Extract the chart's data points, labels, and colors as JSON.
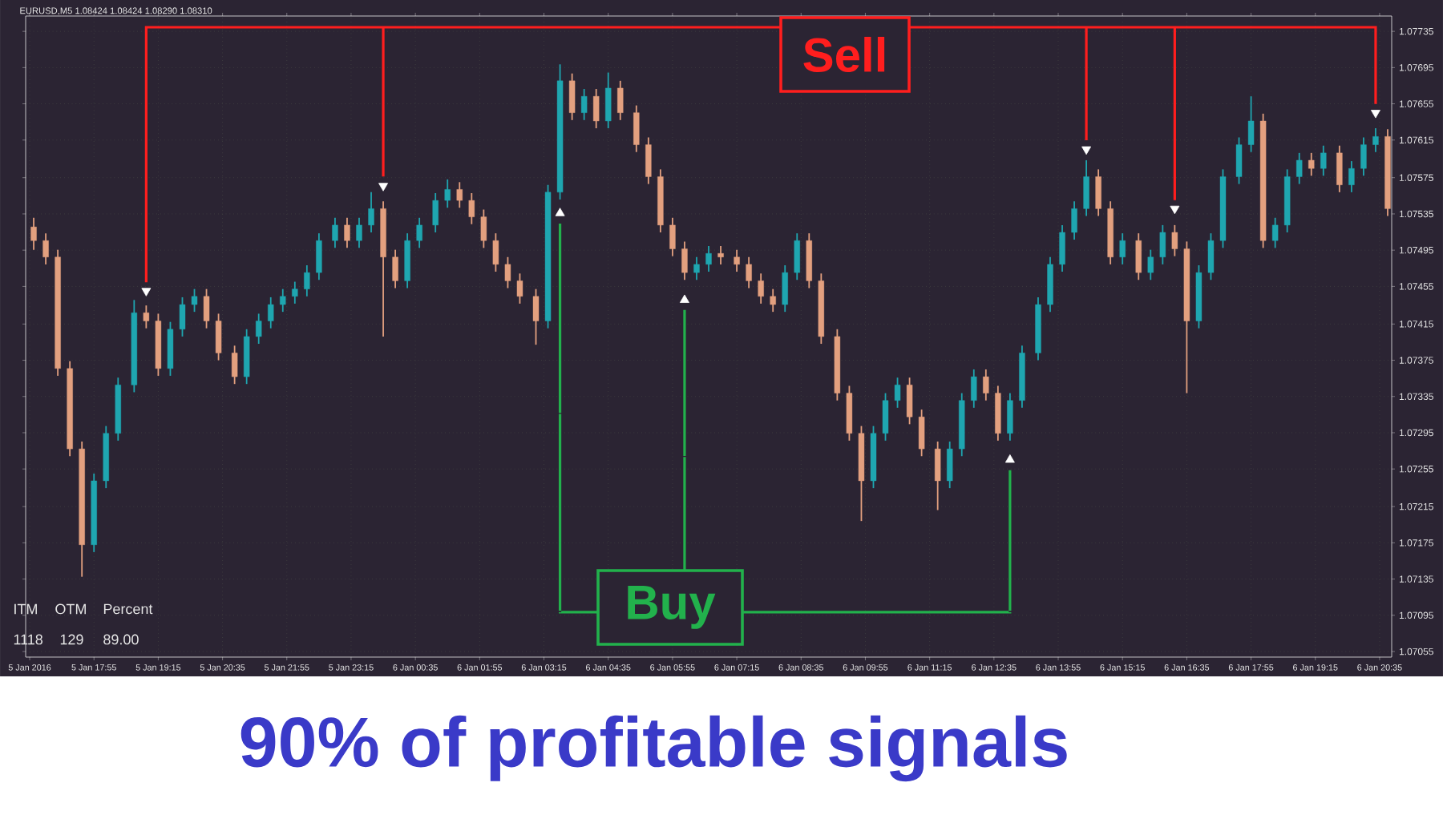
{
  "chart_data": {
    "type": "candlestick",
    "title": "90% of profitable signals",
    "annotations": [
      "EURUSD,M5  1.08424 1.08424 1.08290 1.08310",
      "Sell",
      "Buy",
      "ITM",
      "OTM",
      "Percent",
      "1118",
      "129",
      "89.00"
    ],
    "x": [
      "2016-01-05T16:40",
      "2016-01-05T16:55",
      "2016-01-05T17:10",
      "2016-01-05T17:25",
      "2016-01-05T17:40",
      "2016-01-05T17:55",
      "2016-01-05T18:10",
      "2016-01-05T18:25",
      "2016-01-05T18:45",
      "2016-01-05T19:00",
      "2016-01-05T19:15",
      "2016-01-05T19:30",
      "2016-01-05T19:45",
      "2016-01-05T20:00",
      "2016-01-05T20:15",
      "2016-01-05T20:30",
      "2016-01-05T20:50",
      "2016-01-05T21:05",
      "2016-01-05T21:20",
      "2016-01-05T21:35",
      "2016-01-05T21:50",
      "2016-01-05T22:05",
      "2016-01-05T22:20",
      "2016-01-05T22:35",
      "2016-01-05T22:55",
      "2016-01-05T23:10",
      "2016-01-05T23:25",
      "2016-01-05T23:40",
      "2016-01-05T23:55",
      "2016-01-06T00:10",
      "2016-01-06T00:25",
      "2016-01-06T00:40",
      "2016-01-06T01:00",
      "2016-01-06T01:15",
      "2016-01-06T01:30",
      "2016-01-06T01:45",
      "2016-01-06T02:00",
      "2016-01-06T02:15",
      "2016-01-06T02:30",
      "2016-01-06T02:45",
      "2016-01-06T03:05",
      "2016-01-06T03:20",
      "2016-01-06T03:35",
      "2016-01-06T03:50",
      "2016-01-06T04:05",
      "2016-01-06T04:20",
      "2016-01-06T04:35",
      "2016-01-06T04:50",
      "2016-01-06T05:10",
      "2016-01-06T05:25",
      "2016-01-06T05:40",
      "2016-01-06T05:55",
      "2016-01-06T06:10",
      "2016-01-06T06:25",
      "2016-01-06T06:40",
      "2016-01-06T06:55",
      "2016-01-06T07:15",
      "2016-01-06T07:30",
      "2016-01-06T07:45",
      "2016-01-06T08:00",
      "2016-01-06T08:15",
      "2016-01-06T08:30",
      "2016-01-06T08:45",
      "2016-01-06T09:00",
      "2016-01-06T09:20",
      "2016-01-06T09:35",
      "2016-01-06T09:50",
      "2016-01-06T10:05",
      "2016-01-06T10:20",
      "2016-01-06T10:35",
      "2016-01-06T10:50",
      "2016-01-06T11:05",
      "2016-01-06T11:25",
      "2016-01-06T11:40",
      "2016-01-06T11:55",
      "2016-01-06T12:10",
      "2016-01-06T12:25",
      "2016-01-06T12:40",
      "2016-01-06T12:55",
      "2016-01-06T13:10",
      "2016-01-06T13:30",
      "2016-01-06T13:45",
      "2016-01-06T14:00",
      "2016-01-06T14:15",
      "2016-01-06T14:30",
      "2016-01-06T14:45",
      "2016-01-06T15:00",
      "2016-01-06T15:15",
      "2016-01-06T15:35",
      "2016-01-06T15:50",
      "2016-01-06T16:05",
      "2016-01-06T16:20",
      "2016-01-06T16:35",
      "2016-01-06T16:50",
      "2016-01-06T17:05",
      "2016-01-06T17:20",
      "2016-01-06T17:40",
      "2016-01-06T17:55",
      "2016-01-06T18:10",
      "2016-01-06T18:25",
      "2016-01-06T18:40",
      "2016-01-06T18:55",
      "2016-01-06T19:10",
      "2016-01-06T19:25",
      "2016-01-06T19:45",
      "2016-01-06T20:00",
      "2016-01-06T20:15",
      "2016-01-06T20:30",
      "2016-01-06T20:45"
    ],
    "ohlc": [
      [
        1.0752,
        1.0753,
        1.07495,
        1.07505
      ],
      [
        1.07505,
        1.07513,
        1.07479,
        1.07487
      ],
      [
        1.07487,
        1.07495,
        1.07357,
        1.07365
      ],
      [
        1.07365,
        1.07373,
        1.07269,
        1.07277
      ],
      [
        1.07277,
        1.07285,
        1.07137,
        1.07172
      ],
      [
        1.07172,
        1.0725,
        1.07164,
        1.07242
      ],
      [
        1.07242,
        1.07302,
        1.07234,
        1.07294
      ],
      [
        1.07294,
        1.07355,
        1.07286,
        1.07347
      ],
      [
        1.07347,
        1.0744,
        1.07339,
        1.07426
      ],
      [
        1.07426,
        1.07434,
        1.07409,
        1.07417
      ],
      [
        1.07417,
        1.07425,
        1.07357,
        1.07365
      ],
      [
        1.07365,
        1.07416,
        1.07357,
        1.07408
      ],
      [
        1.07408,
        1.07443,
        1.074,
        1.07435
      ],
      [
        1.07435,
        1.07452,
        1.07427,
        1.07444
      ],
      [
        1.07444,
        1.07452,
        1.07409,
        1.07417
      ],
      [
        1.07417,
        1.07425,
        1.07374,
        1.07382
      ],
      [
        1.07382,
        1.0739,
        1.07348,
        1.07356
      ],
      [
        1.07356,
        1.07408,
        1.07348,
        1.074
      ],
      [
        1.074,
        1.07425,
        1.07392,
        1.07417
      ],
      [
        1.07417,
        1.07443,
        1.07409,
        1.07435
      ],
      [
        1.07435,
        1.07452,
        1.07427,
        1.07444
      ],
      [
        1.07444,
        1.0746,
        1.07436,
        1.07452
      ],
      [
        1.07452,
        1.07478,
        1.07444,
        1.0747
      ],
      [
        1.0747,
        1.07513,
        1.07462,
        1.07505
      ],
      [
        1.07505,
        1.0753,
        1.07497,
        1.07522
      ],
      [
        1.07522,
        1.0753,
        1.07497,
        1.07505
      ],
      [
        1.07505,
        1.0753,
        1.07497,
        1.07522
      ],
      [
        1.07522,
        1.07558,
        1.07514,
        1.0754
      ],
      [
        1.0754,
        1.07548,
        1.074,
        1.07487
      ],
      [
        1.07487,
        1.07495,
        1.07453,
        1.07461
      ],
      [
        1.07461,
        1.07513,
        1.07453,
        1.07505
      ],
      [
        1.07505,
        1.0753,
        1.07497,
        1.07522
      ],
      [
        1.07522,
        1.07557,
        1.07514,
        1.07549
      ],
      [
        1.07549,
        1.07572,
        1.07541,
        1.07561
      ],
      [
        1.07561,
        1.07569,
        1.07541,
        1.07549
      ],
      [
        1.07549,
        1.07557,
        1.07523,
        1.07531
      ],
      [
        1.07531,
        1.07539,
        1.07497,
        1.07505
      ],
      [
        1.07505,
        1.07513,
        1.07471,
        1.07479
      ],
      [
        1.07479,
        1.07487,
        1.07453,
        1.07461
      ],
      [
        1.07461,
        1.07469,
        1.07436,
        1.07444
      ],
      [
        1.07444,
        1.07452,
        1.07391,
        1.07417
      ],
      [
        1.07417,
        1.07566,
        1.07409,
        1.07558
      ],
      [
        1.07558,
        1.07698,
        1.0755,
        1.0768
      ],
      [
        1.0768,
        1.07688,
        1.07637,
        1.07645
      ],
      [
        1.07645,
        1.07671,
        1.07637,
        1.07663
      ],
      [
        1.07663,
        1.07671,
        1.07628,
        1.07636
      ],
      [
        1.07636,
        1.07689,
        1.07628,
        1.07672
      ],
      [
        1.07672,
        1.0768,
        1.07637,
        1.07645
      ],
      [
        1.07645,
        1.07653,
        1.07602,
        1.0761
      ],
      [
        1.0761,
        1.07618,
        1.07567,
        1.07575
      ],
      [
        1.07575,
        1.07583,
        1.07514,
        1.07522
      ],
      [
        1.07522,
        1.0753,
        1.07488,
        1.07496
      ],
      [
        1.07496,
        1.07504,
        1.07462,
        1.0747
      ],
      [
        1.0747,
        1.07487,
        1.07462,
        1.07479
      ],
      [
        1.07479,
        1.07499,
        1.07471,
        1.07491
      ],
      [
        1.07491,
        1.07499,
        1.07479,
        1.07487
      ],
      [
        1.07487,
        1.07495,
        1.07471,
        1.07479
      ],
      [
        1.07479,
        1.07487,
        1.07453,
        1.07461
      ],
      [
        1.07461,
        1.07469,
        1.07436,
        1.07444
      ],
      [
        1.07444,
        1.07452,
        1.07427,
        1.07435
      ],
      [
        1.07435,
        1.07478,
        1.07427,
        1.0747
      ],
      [
        1.0747,
        1.07513,
        1.07462,
        1.07505
      ],
      [
        1.07505,
        1.07513,
        1.07453,
        1.07461
      ],
      [
        1.07461,
        1.07469,
        1.07392,
        1.074
      ],
      [
        1.074,
        1.07408,
        1.0733,
        1.07338
      ],
      [
        1.07338,
        1.07346,
        1.07286,
        1.07294
      ],
      [
        1.07294,
        1.07302,
        1.07198,
        1.07242
      ],
      [
        1.07242,
        1.07302,
        1.07234,
        1.07294
      ],
      [
        1.07294,
        1.07338,
        1.07286,
        1.0733
      ],
      [
        1.0733,
        1.07355,
        1.07322,
        1.07347
      ],
      [
        1.07347,
        1.07355,
        1.07304,
        1.07312
      ],
      [
        1.07312,
        1.0732,
        1.07269,
        1.07277
      ],
      [
        1.07277,
        1.07285,
        1.0721,
        1.07242
      ],
      [
        1.07242,
        1.07285,
        1.07234,
        1.07277
      ],
      [
        1.07277,
        1.07338,
        1.07269,
        1.0733
      ],
      [
        1.0733,
        1.07364,
        1.07322,
        1.07356
      ],
      [
        1.07356,
        1.07364,
        1.0733,
        1.07338
      ],
      [
        1.07338,
        1.07346,
        1.07286,
        1.07294
      ],
      [
        1.07294,
        1.07338,
        1.07286,
        1.0733
      ],
      [
        1.0733,
        1.0739,
        1.07322,
        1.07382
      ],
      [
        1.07382,
        1.07443,
        1.07374,
        1.07435
      ],
      [
        1.07435,
        1.07487,
        1.07427,
        1.07479
      ],
      [
        1.07479,
        1.07522,
        1.07471,
        1.07514
      ],
      [
        1.07514,
        1.07548,
        1.07506,
        1.0754
      ],
      [
        1.0754,
        1.07593,
        1.07532,
        1.07575
      ],
      [
        1.07575,
        1.07583,
        1.07532,
        1.0754
      ],
      [
        1.0754,
        1.07548,
        1.07479,
        1.07487
      ],
      [
        1.07487,
        1.07513,
        1.07479,
        1.07505
      ],
      [
        1.07505,
        1.07513,
        1.07462,
        1.0747
      ],
      [
        1.0747,
        1.07495,
        1.07462,
        1.07487
      ],
      [
        1.07487,
        1.07522,
        1.07479,
        1.07514
      ],
      [
        1.07514,
        1.07522,
        1.07488,
        1.07496
      ],
      [
        1.07496,
        1.07504,
        1.07338,
        1.07417
      ],
      [
        1.07417,
        1.07478,
        1.07409,
        1.0747
      ],
      [
        1.0747,
        1.07513,
        1.07462,
        1.07505
      ],
      [
        1.07505,
        1.07583,
        1.07497,
        1.07575
      ],
      [
        1.07575,
        1.07618,
        1.07567,
        1.0761
      ],
      [
        1.0761,
        1.07663,
        1.07602,
        1.07636
      ],
      [
        1.07636,
        1.07644,
        1.07497,
        1.07505
      ],
      [
        1.07505,
        1.0753,
        1.07497,
        1.07522
      ],
      [
        1.07522,
        1.07583,
        1.07514,
        1.07575
      ],
      [
        1.07575,
        1.07601,
        1.07567,
        1.07593
      ],
      [
        1.07593,
        1.07601,
        1.07576,
        1.07584
      ],
      [
        1.07584,
        1.07609,
        1.07576,
        1.07601
      ],
      [
        1.07601,
        1.07609,
        1.07558,
        1.07566
      ],
      [
        1.07566,
        1.07592,
        1.07558,
        1.07584
      ],
      [
        1.07584,
        1.07618,
        1.07576,
        1.0761
      ],
      [
        1.0761,
        1.07628,
        1.07602,
        1.07619
      ],
      [
        1.07619,
        1.07627,
        1.07532,
        1.0754
      ]
    ],
    "series": [
      {
        "type": "scatter",
        "color": "#ffffff",
        "marker": "triangle",
        "x": [
          "2016-01-05T19:00",
          "2016-01-05T23:55",
          "2016-01-06T14:30",
          "2016-01-06T16:20",
          "2016-01-06T20:30"
        ],
        "values": [
          1.0745,
          1.07565,
          1.07605,
          1.0754,
          1.07645
        ]
      },
      {
        "type": "scatter",
        "color": "#ffffff",
        "marker": "triangle",
        "x": [
          "2016-01-06T03:35",
          "2016-01-06T06:10",
          "2016-01-06T12:55"
        ],
        "values": [
          1.07535,
          1.0744,
          1.07265
        ]
      }
    ],
    "xlim": [
      "2016-01-05T16:30",
      "2016-01-06T20:50"
    ],
    "xticks": [
      {
        "value": "2016-01-05T16:35",
        "label": "5 Jan 2016"
      },
      {
        "value": "2016-01-05T17:55",
        "label": "5 Jan 17:55"
      },
      {
        "value": "2016-01-05T19:15",
        "label": "5 Jan 19:15"
      },
      {
        "value": "2016-01-05T20:35",
        "label": "5 Jan 20:35"
      },
      {
        "value": "2016-01-05T21:55",
        "label": "5 Jan 21:55"
      },
      {
        "value": "2016-01-05T23:15",
        "label": "5 Jan 23:15"
      },
      {
        "value": "2016-01-06T00:35",
        "label": "6 Jan 00:35"
      },
      {
        "value": "2016-01-06T01:55",
        "label": "6 Jan 01:55"
      },
      {
        "value": "2016-01-06T03:15",
        "label": "6 Jan 03:15"
      },
      {
        "value": "2016-01-06T04:35",
        "label": "6 Jan 04:35"
      },
      {
        "value": "2016-01-06T05:55",
        "label": "6 Jan 05:55"
      },
      {
        "value": "2016-01-06T07:15",
        "label": "6 Jan 07:15"
      },
      {
        "value": "2016-01-06T08:35",
        "label": "6 Jan 08:35"
      },
      {
        "value": "2016-01-06T09:55",
        "label": "6 Jan 09:55"
      },
      {
        "value": "2016-01-06T11:15",
        "label": "6 Jan 11:15"
      },
      {
        "value": "2016-01-06T12:35",
        "label": "6 Jan 12:35"
      },
      {
        "value": "2016-01-06T13:55",
        "label": "6 Jan 13:55"
      },
      {
        "value": "2016-01-06T15:15",
        "label": "6 Jan 15:15"
      },
      {
        "value": "2016-01-06T16:35",
        "label": "6 Jan 16:35"
      },
      {
        "value": "2016-01-06T17:55",
        "label": "6 Jan 17:55"
      },
      {
        "value": "2016-01-06T19:15",
        "label": "6 Jan 19:15"
      },
      {
        "value": "2016-01-06T20:35",
        "label": "6 Jan 20:35"
      }
    ],
    "ylim": [
      1.07049,
      1.07751
    ],
    "yticks": [
      1.07055,
      1.07095,
      1.07135,
      1.07175,
      1.07215,
      1.07255,
      1.07295,
      1.07335,
      1.07375,
      1.07415,
      1.07455,
      1.07495,
      1.07535,
      1.07575,
      1.07615,
      1.07655,
      1.07695,
      1.07735
    ],
    "grid": true
  }
}
